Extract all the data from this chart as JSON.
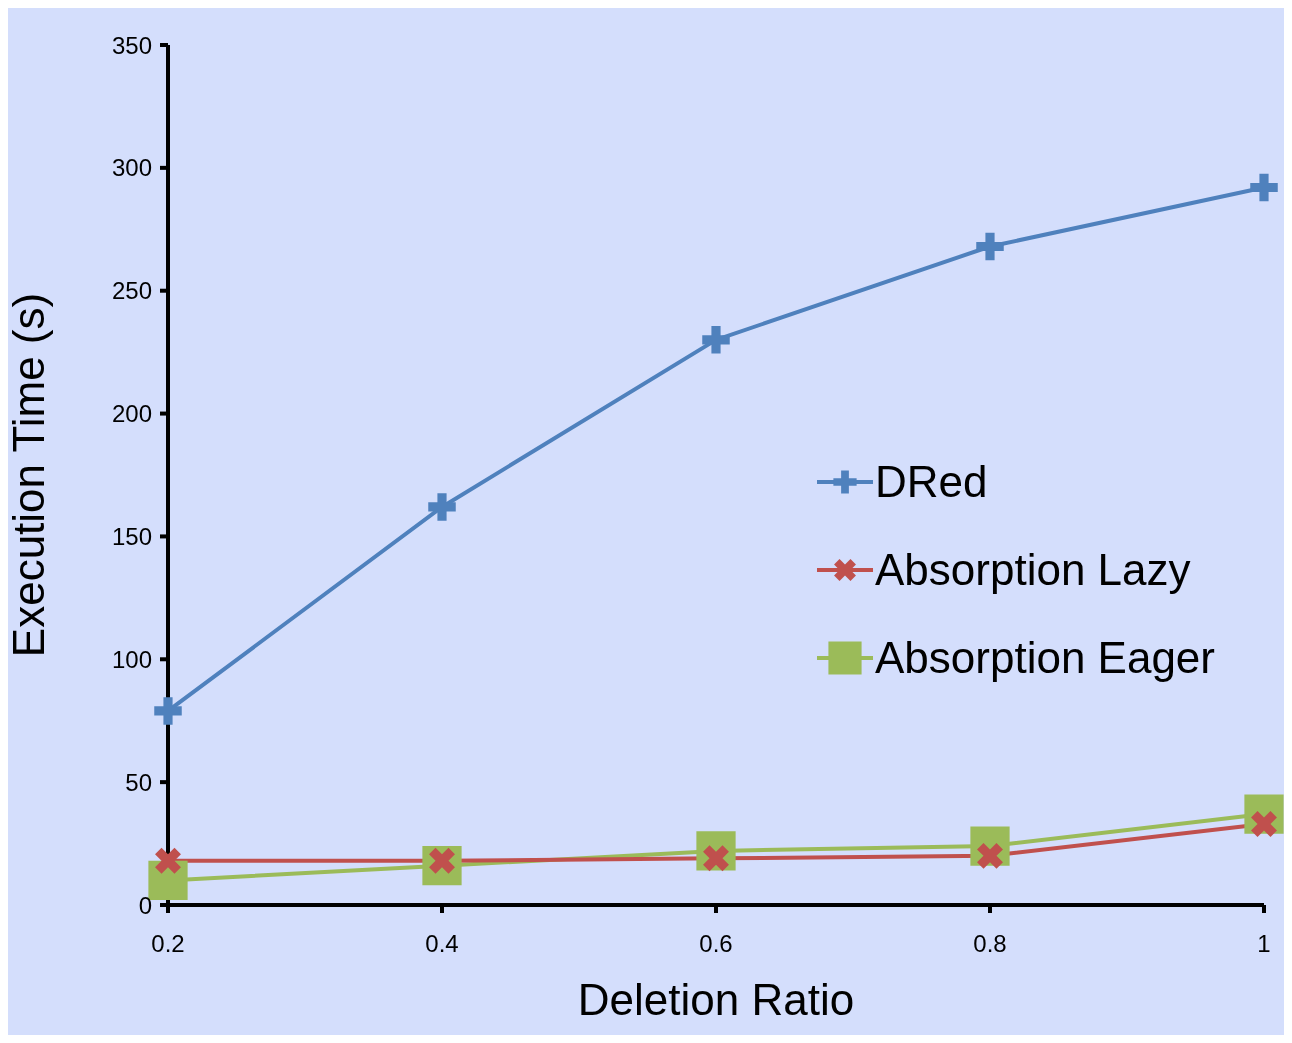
{
  "chart_data": {
    "type": "line",
    "xlabel": "Deletion Ratio",
    "ylabel": "Execution Time (s)",
    "categories": [
      "0.2",
      "0.4",
      "0.6",
      "0.8",
      "1"
    ],
    "series": [
      {
        "name": "DRed",
        "color": "#4f81bd",
        "marker": "cross",
        "values": [
          79,
          162,
          230,
          268,
          292
        ]
      },
      {
        "name": "Absorption Lazy",
        "color": "#c0504d",
        "marker": "cross",
        "values": [
          18,
          18,
          19,
          20,
          33
        ]
      },
      {
        "name": "Absorption Eager",
        "color": "#9bbb59",
        "marker": "square",
        "values": [
          10,
          16,
          22,
          24,
          37
        ]
      }
    ],
    "ylim": [
      0,
      350
    ],
    "yticks": [
      0,
      50,
      100,
      150,
      200,
      250,
      300,
      350
    ],
    "legend": "right"
  }
}
